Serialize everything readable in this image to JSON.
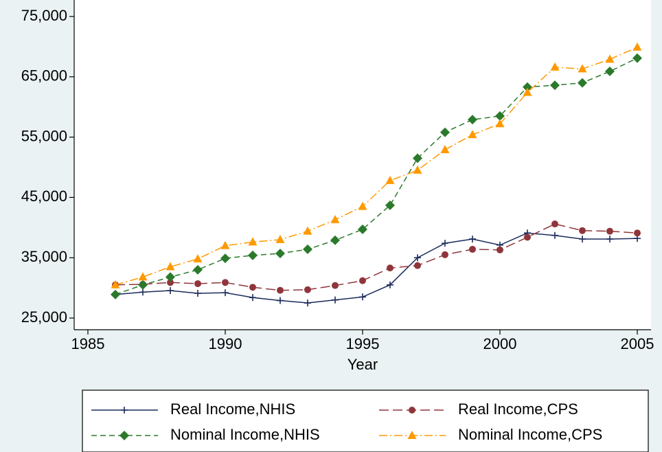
{
  "chart_data": {
    "type": "line",
    "x": [
      1986,
      1987,
      1988,
      1989,
      1990,
      1991,
      1992,
      1993,
      1994,
      1995,
      1996,
      1997,
      1998,
      1999,
      2000,
      2001,
      2002,
      2003,
      2004,
      2005
    ],
    "xlabel": "Year",
    "xlim": [
      1985,
      2005
    ],
    "xticks": [
      1985,
      1990,
      1995,
      2000,
      2005
    ],
    "ylim": [
      25000,
      75000
    ],
    "yticks": [
      {
        "value": 25000,
        "label": "25,000"
      },
      {
        "value": 35000,
        "label": "35,000"
      },
      {
        "value": 45000,
        "label": "45,000"
      },
      {
        "value": 55000,
        "label": "55,000"
      },
      {
        "value": 65000,
        "label": "65,000"
      },
      {
        "value": 75000,
        "label": "75,000"
      }
    ],
    "grid": false,
    "series": [
      {
        "name": "Real Income,NHIS",
        "color": "#1a2a5a",
        "marker": "plus",
        "dash": "solid",
        "values": [
          28900,
          29300,
          29550,
          29100,
          29200,
          28400,
          27900,
          27500,
          28000,
          28500,
          30500,
          35000,
          37400,
          38100,
          37100,
          39100,
          38700,
          38100,
          38100,
          38200
        ]
      },
      {
        "name": "Real Income,CPS",
        "color": "#90353b",
        "marker": "circle",
        "dash": "longdash",
        "values": [
          30500,
          30600,
          30900,
          30700,
          30900,
          30100,
          29600,
          29700,
          30400,
          31200,
          33300,
          33700,
          35500,
          36400,
          36300,
          38400,
          40600,
          39500,
          39400,
          39100
        ]
      },
      {
        "name": "Nominal Income,NHIS",
        "color": "#2b7a2b",
        "marker": "diamond",
        "dash": "dash",
        "values": [
          28900,
          30500,
          31800,
          33000,
          34900,
          35400,
          35700,
          36400,
          37900,
          39700,
          43700,
          51500,
          55800,
          57900,
          58500,
          63300,
          63600,
          64000,
          65900,
          68100
        ]
      },
      {
        "name": "Nominal Income,CPS",
        "color": "#ff9900",
        "marker": "triangle",
        "dash": "dashdot",
        "values": [
          30500,
          31800,
          33500,
          34800,
          37000,
          37600,
          38000,
          39400,
          41300,
          43500,
          47800,
          49500,
          52900,
          55400,
          57200,
          62400,
          66600,
          66300,
          67900,
          69900
        ]
      }
    ]
  }
}
